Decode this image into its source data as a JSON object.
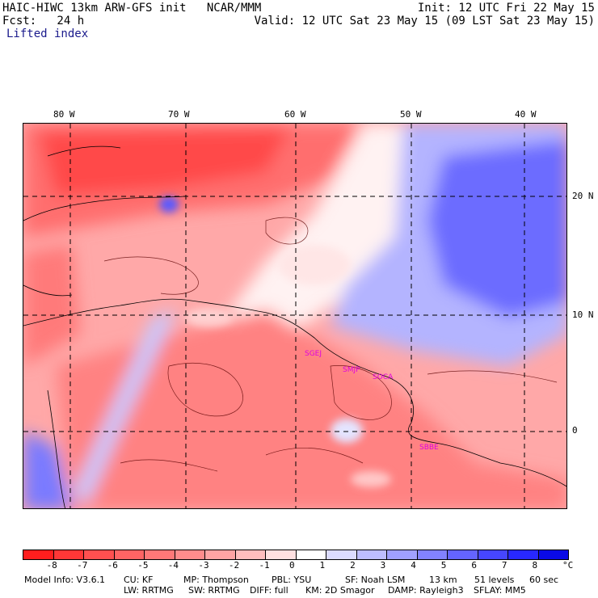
{
  "header": {
    "model_line": "HAIC-HIWC 13km ARW-GFS init   NCAR/MMM",
    "init_line": "Init: 12 UTC Fri 22 May 15",
    "fcst_line": "Fcst:   24 h",
    "valid_line": "Valid: 12 UTC Sat 23 May 15 (09 LST Sat 23 May 15)",
    "field": "Lifted index"
  },
  "map": {
    "lon_labels": [
      "80 W",
      "70 W",
      "60 W",
      "50 W",
      "40 W"
    ],
    "lat_labels": [
      "20 N",
      "10 N",
      "0"
    ],
    "stations": [
      "SGEJ",
      "SMJP",
      "SOCA",
      "SBBE"
    ]
  },
  "colorbar": {
    "unit": "°C",
    "tick_labels": [
      "-8",
      "-7",
      "-6",
      "-5",
      "-4",
      "-3",
      "-2",
      "-1",
      "0",
      "1",
      "2",
      "3",
      "4",
      "5",
      "6",
      "7",
      "8"
    ],
    "colors": [
      "#ff1e1e",
      "#ff3737",
      "#ff5050",
      "#ff6464",
      "#ff7878",
      "#ff8c8c",
      "#ffa4a4",
      "#ffbebe",
      "#ffe0e0",
      "#ffffff",
      "#dcdcff",
      "#bebeff",
      "#a0a0ff",
      "#8282ff",
      "#6464ff",
      "#4646ff",
      "#2828ff",
      "#0a0ae6"
    ]
  },
  "footer": {
    "line1": [
      "Model Info: V3.6.1",
      "CU: KF",
      "MP: Thompson",
      "PBL: YSU",
      "SF: Noah LSM",
      "13 km",
      "51 levels",
      "60 sec"
    ],
    "line2": [
      "LW: RRTMG",
      "SW: RRTMG",
      "DIFF: full",
      "KM: 2D Smagor",
      "DAMP: Rayleigh3",
      "SFLAY: MM5"
    ]
  }
}
